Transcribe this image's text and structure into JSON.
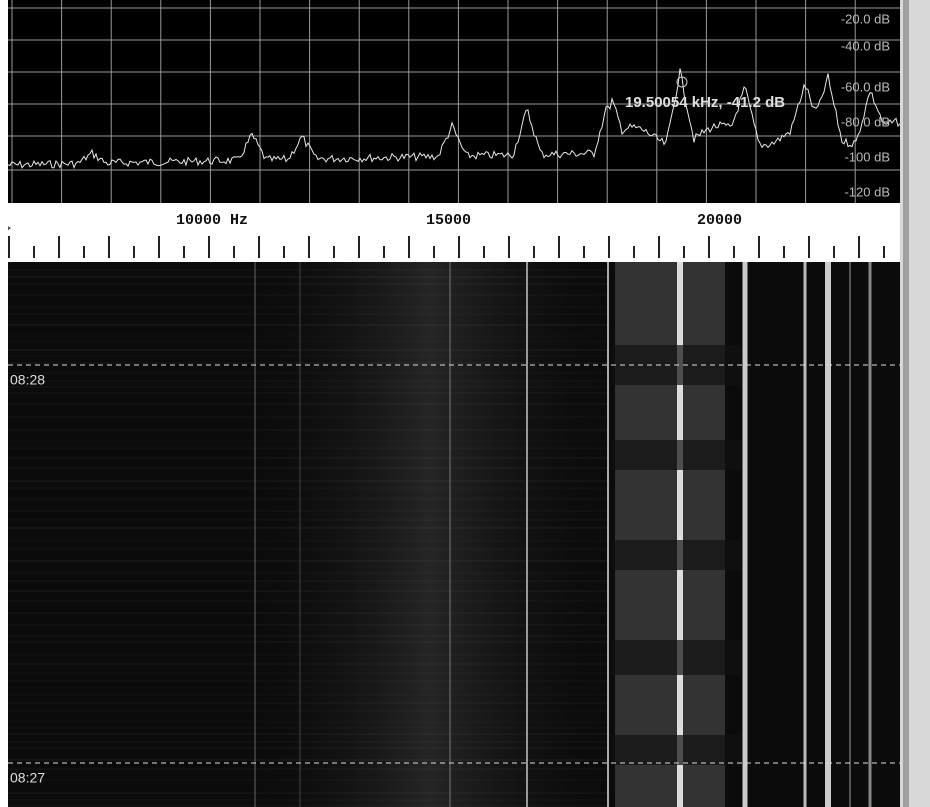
{
  "spectrum": {
    "db_labels": [
      "-20.0 dB",
      "-40.0 dB",
      "-60.0 dB",
      "-80.0 dB",
      "-100 dB",
      "-120 dB"
    ],
    "cursor_readout": "19.50054 kHz, -41.2 dB"
  },
  "ruler": {
    "labels": [
      "10000 Hz",
      "15000",
      "20000"
    ]
  },
  "waterfall": {
    "timestamps": [
      "08:28",
      "08:27"
    ]
  }
}
